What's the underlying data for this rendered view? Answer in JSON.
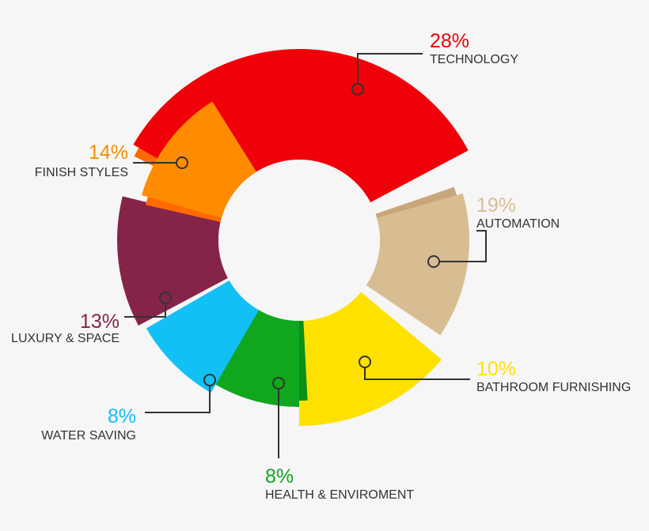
{
  "chart_data": {
    "type": "pie",
    "variant": "donut",
    "title": "",
    "segments": [
      {
        "label": "TECHNOLOGY",
        "percent_text": "28%",
        "value": 28,
        "color": "#f00008",
        "edge_color": "#ff6a00"
      },
      {
        "label": "AUTOMATION",
        "percent_text": "19%",
        "value": 19,
        "color": "#d8bd92",
        "edge_color": "#c9a679",
        "text_color": "#d8bd92"
      },
      {
        "label": "BATHROOM FURNISHING",
        "percent_text": "10%",
        "value": 10,
        "color": "#ffe100",
        "edge_color": "#ffe100"
      },
      {
        "label": "HEALTH & ENVIROMENT",
        "percent_text": "8%",
        "value": 8,
        "color": "#10a61e",
        "edge_color": "#0b8f17"
      },
      {
        "label": "WATER SAVING",
        "percent_text": "8%",
        "value": 8,
        "color": "#12c0f6",
        "edge_color": "#12c0f6"
      },
      {
        "label": "LUXURY & SPACE",
        "percent_text": "13%",
        "value": 13,
        "color": "#862349",
        "edge_color": "#862349"
      },
      {
        "label": "FINISH STYLES",
        "percent_text": "14%",
        "value": 14,
        "color": "#ff8c00",
        "edge_color": "#ff6a00",
        "text_color": "#f39000"
      }
    ]
  }
}
